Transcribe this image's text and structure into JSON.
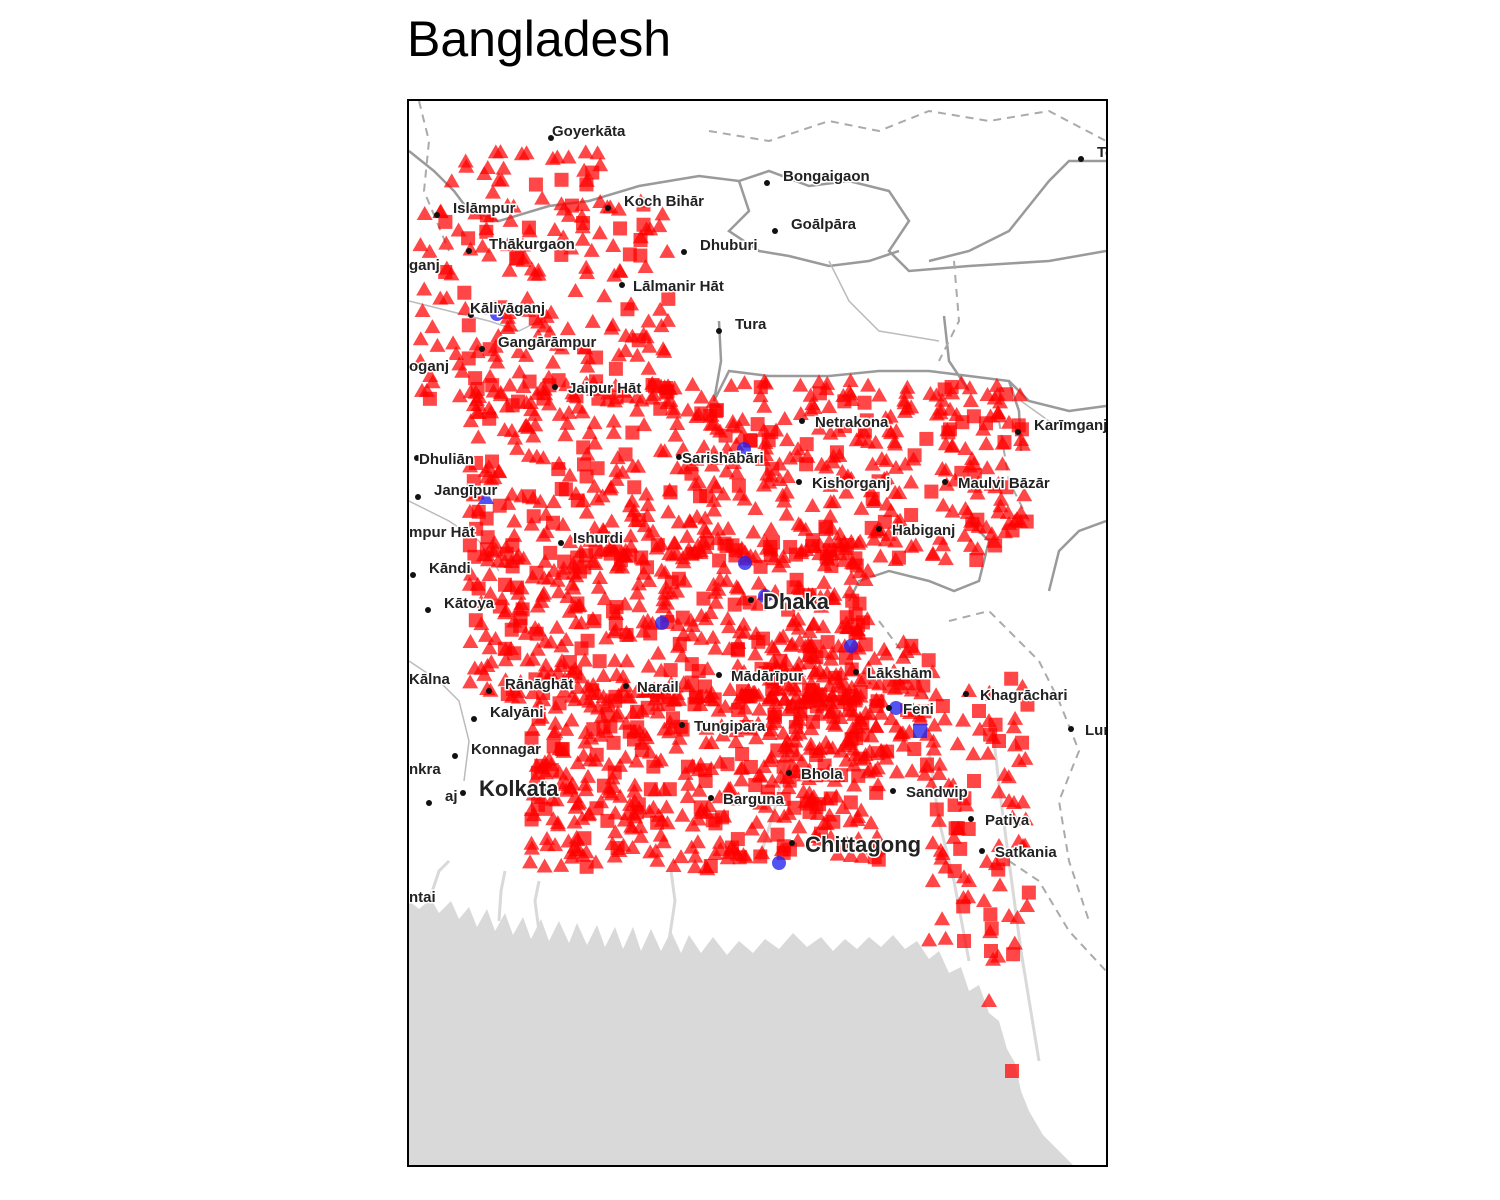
{
  "title": "Bangladesh",
  "colors": {
    "background": "#ffffff",
    "sea": "#d9d9d9",
    "land": "#ffffff",
    "border": "#9a9a9a",
    "admin_border": "#aaaaaa",
    "marker_red": "#ff0000",
    "marker_blue": "#2222ee",
    "frame": "#000000"
  },
  "places": [
    {
      "name": "Goyerkāta",
      "major": false
    },
    {
      "name": "Bongaigaon",
      "major": false
    },
    {
      "name": "Te",
      "major": false
    },
    {
      "name": "Koch Bihār",
      "major": false
    },
    {
      "name": "Islāmpur",
      "major": false
    },
    {
      "name": "Goālpāra",
      "major": false
    },
    {
      "name": "Thākurgaon",
      "major": false
    },
    {
      "name": "Dhuburi",
      "major": false
    },
    {
      "name": "ganj",
      "major": false
    },
    {
      "name": "Lālmanir Hāt",
      "major": false
    },
    {
      "name": "Kāliyāganj",
      "major": false
    },
    {
      "name": "Tura",
      "major": false
    },
    {
      "name": "Gangārāmpur",
      "major": false
    },
    {
      "name": "oganj",
      "major": false
    },
    {
      "name": "Jaipur Hāt",
      "major": false
    },
    {
      "name": "Netrakona",
      "major": false
    },
    {
      "name": "Karīmganj",
      "major": false
    },
    {
      "name": "Dhuliān",
      "major": false
    },
    {
      "name": "Sarishābāri",
      "major": false
    },
    {
      "name": "Kishorganj",
      "major": false
    },
    {
      "name": "Maulvi Bāzār",
      "major": false
    },
    {
      "name": "Jangīpur",
      "major": false
    },
    {
      "name": "mpur Hāt",
      "major": false
    },
    {
      "name": "Habiganj",
      "major": false
    },
    {
      "name": "Ishurdi",
      "major": false
    },
    {
      "name": "Kāndi",
      "major": false
    },
    {
      "name": "Dhaka",
      "major": true
    },
    {
      "name": "Kātoya",
      "major": false
    },
    {
      "name": "Lākshām",
      "major": false
    },
    {
      "name": "Kālna",
      "major": false
    },
    {
      "name": "Rānāghāt",
      "major": false
    },
    {
      "name": "Narail",
      "major": false
    },
    {
      "name": "Mādārīpur",
      "major": false
    },
    {
      "name": "Khagrāchari",
      "major": false
    },
    {
      "name": "Feni",
      "major": false
    },
    {
      "name": "Kalyāni",
      "major": false
    },
    {
      "name": "Tungipara",
      "major": false
    },
    {
      "name": "Lun",
      "major": false
    },
    {
      "name": "Konnagar",
      "major": false
    },
    {
      "name": "nkra",
      "major": false
    },
    {
      "name": "Bhola",
      "major": false
    },
    {
      "name": "Kolkata",
      "major": true
    },
    {
      "name": "Sandwip",
      "major": false
    },
    {
      "name": "Barguna",
      "major": false
    },
    {
      "name": "aj",
      "major": false
    },
    {
      "name": "Patiya",
      "major": false
    },
    {
      "name": "Chittagong",
      "major": true
    },
    {
      "name": "Satkania",
      "major": false
    },
    {
      "name": "ntai",
      "major": false
    }
  ],
  "marker_legend": {
    "shapes": [
      "triangle",
      "square",
      "circle"
    ],
    "colors": [
      "red",
      "blue"
    ]
  }
}
